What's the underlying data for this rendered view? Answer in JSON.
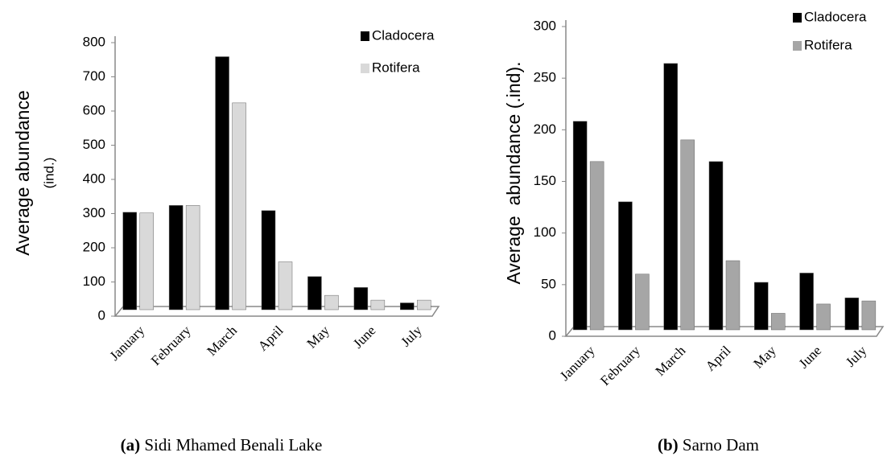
{
  "chart_data": [
    {
      "type": "bar",
      "y_label": "Average abundance",
      "y_label_2": "(ind.)",
      "categories": [
        "January",
        "February",
        "March",
        "April",
        "May",
        "June",
        "July"
      ],
      "series": [
        {
          "name": "Cladocera",
          "color": "#000000",
          "values": [
            285,
            305,
            740,
            290,
            97,
            65,
            20
          ]
        },
        {
          "name": "Rotifera",
          "color": "#d9d9d9",
          "values": [
            283,
            305,
            605,
            140,
            42,
            28,
            28
          ]
        }
      ],
      "ylim": [
        0,
        800
      ],
      "yticks": [
        0,
        100,
        200,
        300,
        400,
        500,
        600,
        700,
        800
      ],
      "caption": {
        "label": "(a)",
        "text": "Sidi Mhamed Benali Lake"
      }
    },
    {
      "type": "bar",
      "y_label": "Average  abundance (.ind).",
      "categories": [
        "January",
        "February",
        "March",
        "April",
        "May",
        "June",
        "July"
      ],
      "series": [
        {
          "name": "Cladocera",
          "color": "#000000",
          "values": [
            202,
            124,
            258,
            163,
            46,
            55,
            31
          ]
        },
        {
          "name": "Rotifera",
          "color": "#a6a6a6",
          "values": [
            163,
            54,
            184,
            67,
            16,
            25,
            28
          ]
        }
      ],
      "ylim": [
        0,
        300
      ],
      "yticks": [
        0,
        50,
        100,
        150,
        200,
        250,
        300
      ],
      "caption": {
        "label": "(b)",
        "text": "Sarno Dam"
      }
    }
  ]
}
